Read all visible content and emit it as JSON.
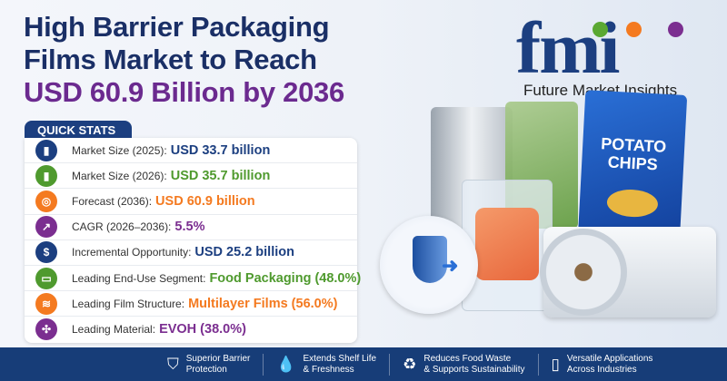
{
  "title": {
    "line1": "High Barrier Packaging",
    "line2": "Films Market to Reach",
    "line3": "USD 60.9 Billion by 2036"
  },
  "logo": {
    "mark": "fmi",
    "name": "Future Market Insights",
    "dot_colors": [
      "#5aa832",
      "#f47a20",
      "#7b2e90"
    ]
  },
  "quick_stats": {
    "heading": "QUICK STATS",
    "items": [
      {
        "icon": "bar-chart-icon",
        "label": "Market Size (2025):",
        "value": "USD 33.7 billion",
        "color": "#1c3f80"
      },
      {
        "icon": "bar-chart-icon",
        "label": "Market Size (2026):",
        "value": "USD 35.7 billion",
        "color": "#4f9a2e"
      },
      {
        "icon": "target-icon",
        "label": "Forecast (2036):",
        "value": "USD 60.9 billion",
        "color": "#f47a20"
      },
      {
        "icon": "trend-up-icon",
        "label": "CAGR (2026–2036):",
        "value": "5.5%",
        "color": "#7b2e90"
      },
      {
        "icon": "dollar-icon",
        "label": "Incremental Opportunity:",
        "value": "USD 25.2 billion",
        "color": "#1c3f80"
      },
      {
        "icon": "food-tray-icon",
        "label": "Leading End-Use Segment:",
        "value": "Food Packaging (48.0%)",
        "color": "#4f9a2e"
      },
      {
        "icon": "layers-icon",
        "label": "Leading Film Structure:",
        "value": "Multilayer Films (56.0%)",
        "color": "#f47a20"
      },
      {
        "icon": "molecule-icon",
        "label": "Leading Material:",
        "value": "EVOH (38.0%)",
        "color": "#7b2e90"
      }
    ]
  },
  "illustration": {
    "chips_bag_text": "POTATO CHIPS"
  },
  "features": [
    {
      "icon": "shield-icon",
      "line1": "Superior Barrier",
      "line2": "Protection"
    },
    {
      "icon": "droplet-icon",
      "line1": "Extends Shelf Life",
      "line2": "& Freshness"
    },
    {
      "icon": "recycle-leaf-icon",
      "line1": "Reduces Food Waste",
      "line2": "& Supports Sustainability"
    },
    {
      "icon": "package-icon",
      "line1": "Versatile Applications",
      "line2": "Across Industries"
    }
  ]
}
